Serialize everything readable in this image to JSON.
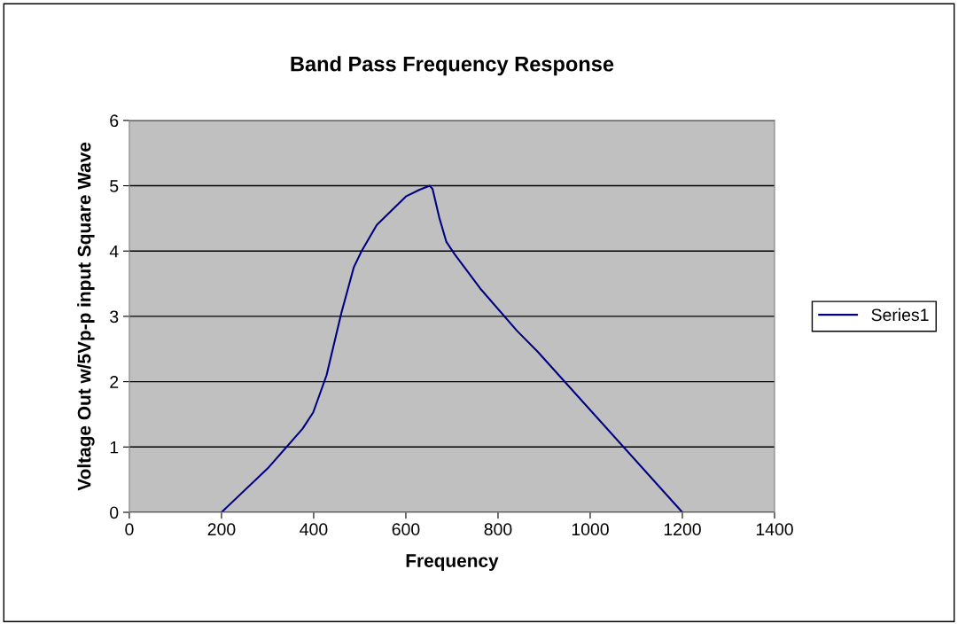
{
  "chart_data": {
    "type": "line",
    "title": "Band Pass Frequency Response",
    "xlabel": "Frequency",
    "ylabel": "Voltage Out w/5Vp-p input Square Wave",
    "series": [
      {
        "name": "Series1",
        "color": "#000080",
        "x": [
          200,
          300,
          376,
          399,
          428,
          460,
          487,
          504,
          537,
          601,
          630,
          652,
          658,
          673,
          688,
          706,
          761,
          841,
          886,
          1200
        ],
        "values": [
          0,
          0.67,
          1.28,
          1.53,
          2.1,
          3.05,
          3.75,
          4.0,
          4.4,
          4.84,
          4.94,
          5.0,
          4.95,
          4.5,
          4.14,
          3.95,
          3.43,
          2.78,
          2.46,
          0
        ]
      }
    ],
    "xlim": [
      0,
      1400
    ],
    "xticks": [
      0,
      200,
      400,
      600,
      800,
      1000,
      1200,
      1400
    ],
    "ylim": [
      0,
      6
    ],
    "yticks": [
      0,
      1,
      2,
      3,
      4,
      5,
      6
    ],
    "grid": "y",
    "legend": "right",
    "marker": "none",
    "line_style": "solid"
  }
}
